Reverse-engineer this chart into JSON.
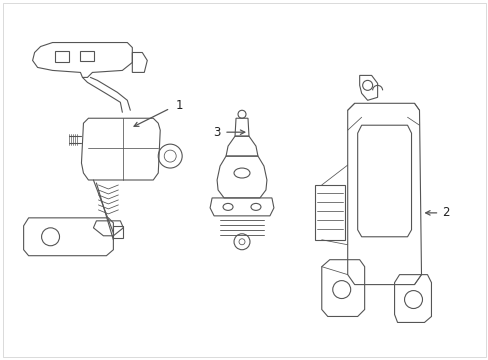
{
  "background_color": "#ffffff",
  "line_color": "#555555",
  "line_width": 0.8,
  "fig_width": 4.89,
  "fig_height": 3.6,
  "dpi": 100,
  "label_1": "1",
  "label_2": "2",
  "label_3": "3",
  "label_fontsize": 8.5,
  "label_color": "#222222",
  "border_color": "#cccccc"
}
